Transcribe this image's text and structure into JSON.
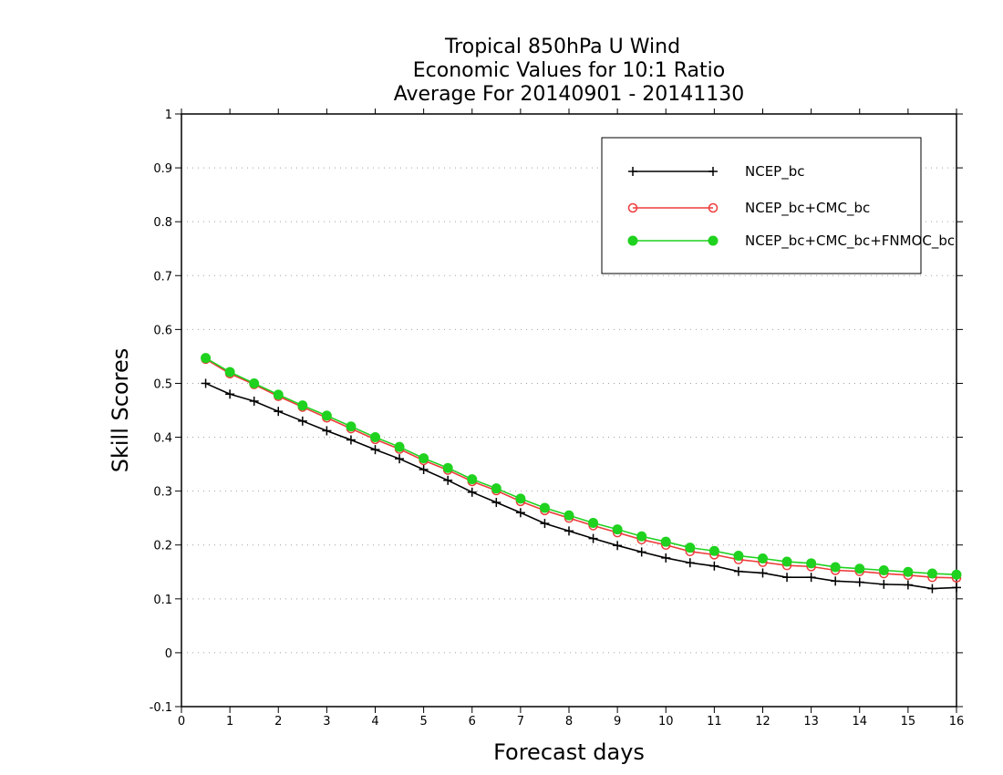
{
  "chart_data": {
    "type": "line",
    "title_lines": [
      "Tropical 850hPa U Wind",
      "Economic Values for 10:1 Ratio",
      "Average For 20140901 - 20141130"
    ],
    "xlabel": "Forecast days",
    "ylabel": "Skill Scores",
    "xlim": [
      0,
      16
    ],
    "ylim": [
      -0.1,
      1
    ],
    "xticks": [
      0,
      1,
      2,
      3,
      4,
      5,
      6,
      7,
      8,
      9,
      10,
      11,
      12,
      13,
      14,
      15,
      16
    ],
    "yticks": [
      -0.1,
      0,
      0.1,
      0.2,
      0.3,
      0.4,
      0.5,
      0.6,
      0.7,
      0.8,
      0.9,
      1
    ],
    "ytick_labels": [
      "-0.1",
      "0",
      "0.1",
      "0.2",
      "0.3",
      "0.4",
      "0.5",
      "0.6",
      "0.7",
      "0.8",
      "0.9",
      "1"
    ],
    "grid": "horizontal-dotted",
    "legend_position": "top-right",
    "x": [
      0.5,
      1.0,
      1.5,
      2.0,
      2.5,
      3.0,
      3.5,
      4.0,
      4.5,
      5.0,
      5.5,
      6.0,
      6.5,
      7.0,
      7.5,
      8.0,
      8.5,
      9.0,
      9.5,
      10.0,
      10.5,
      11.0,
      11.5,
      12.0,
      12.5,
      13.0,
      13.5,
      14.0,
      14.5,
      15.0,
      15.5,
      16.0
    ],
    "series": [
      {
        "name": "NCEP_bc",
        "color": "#000000",
        "marker": "plus",
        "values": [
          0.5,
          0.48,
          0.467,
          0.448,
          0.43,
          0.412,
          0.395,
          0.377,
          0.36,
          0.34,
          0.32,
          0.298,
          0.279,
          0.26,
          0.24,
          0.226,
          0.212,
          0.199,
          0.187,
          0.176,
          0.167,
          0.161,
          0.151,
          0.148,
          0.14,
          0.14,
          0.133,
          0.131,
          0.127,
          0.126,
          0.119,
          0.121
        ]
      },
      {
        "name": "NCEP_bc+CMC_bc",
        "color": "#ee3b3b",
        "marker": "open-circle",
        "values": [
          0.545,
          0.518,
          0.498,
          0.476,
          0.456,
          0.436,
          0.416,
          0.396,
          0.378,
          0.357,
          0.339,
          0.318,
          0.301,
          0.281,
          0.264,
          0.25,
          0.236,
          0.223,
          0.21,
          0.2,
          0.188,
          0.182,
          0.173,
          0.168,
          0.162,
          0.16,
          0.153,
          0.151,
          0.147,
          0.144,
          0.14,
          0.139
        ]
      },
      {
        "name": "NCEP_bc+CMC_bc+FNMOC_bc",
        "color": "#1fd21f",
        "marker": "filled-circle",
        "values": [
          0.547,
          0.521,
          0.5,
          0.479,
          0.459,
          0.44,
          0.42,
          0.4,
          0.382,
          0.361,
          0.343,
          0.322,
          0.305,
          0.286,
          0.269,
          0.255,
          0.241,
          0.229,
          0.216,
          0.206,
          0.195,
          0.189,
          0.18,
          0.175,
          0.169,
          0.166,
          0.159,
          0.156,
          0.153,
          0.15,
          0.147,
          0.145
        ]
      }
    ]
  }
}
